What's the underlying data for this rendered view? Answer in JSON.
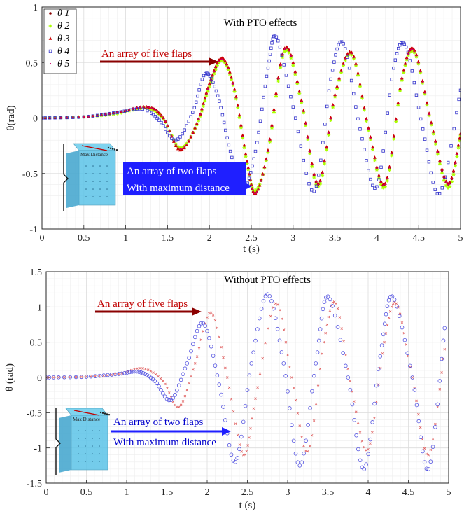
{
  "chart_data": [
    {
      "type": "scatter",
      "title": "With PTO effects",
      "xlabel": "t (s)",
      "ylabel": "θ(rad)",
      "xlim": [
        0,
        5
      ],
      "ylim": [
        -1,
        1
      ],
      "xticks": [
        0,
        0.5,
        1,
        1.5,
        2,
        2.5,
        3,
        3.5,
        4,
        4.5,
        5
      ],
      "yticks": [
        -1,
        -0.5,
        0,
        0.5,
        1
      ],
      "grid": true,
      "legend_position": "top-left",
      "legend": [
        "θ 1",
        "θ 2",
        "θ 3",
        "θ 4",
        "θ 5"
      ],
      "annotations": [
        {
          "text": "An array of five flaps",
          "color": "#c00000",
          "arrow_color": "#8b0000"
        },
        {
          "text": "An array of two flaps",
          "color": "#ffffff",
          "box": "#1f1fff"
        },
        {
          "text": "With maximum distance",
          "color": "#ffffff",
          "box": "#1f1fff"
        }
      ],
      "inset": {
        "label": "Max Distance"
      },
      "series": [
        {
          "name": "θ 1",
          "marker": "dot",
          "color": "#8b0000",
          "t": [
            0,
            0.5,
            0.9,
            1.25,
            1.45,
            1.65,
            1.85,
            2.0,
            2.15,
            2.3,
            2.45,
            2.55,
            2.7,
            2.9,
            3.1,
            3.3,
            3.5,
            3.7,
            3.9,
            4.1,
            4.3,
            4.45,
            4.65,
            4.85,
            5.0
          ],
          "theta": [
            0,
            0.01,
            0.05,
            0.1,
            0.0,
            -0.28,
            -0.05,
            0.3,
            0.53,
            0.25,
            -0.4,
            -0.68,
            -0.3,
            0.62,
            0.15,
            -0.6,
            0.2,
            0.58,
            -0.1,
            -0.6,
            0.35,
            0.6,
            -0.05,
            -0.6,
            -0.15
          ]
        },
        {
          "name": "θ 2",
          "marker": "star",
          "color": "#aaff00",
          "t": [
            0,
            0.5,
            0.9,
            1.25,
            1.45,
            1.65,
            1.85,
            2.0,
            2.15,
            2.3,
            2.45,
            2.55,
            2.7,
            2.9,
            3.1,
            3.3,
            3.5,
            3.7,
            3.9,
            4.1,
            4.3,
            4.45,
            4.65,
            4.85,
            5.0
          ],
          "theta": [
            0,
            0.01,
            0.04,
            0.09,
            -0.01,
            -0.27,
            -0.06,
            0.28,
            0.52,
            0.24,
            -0.41,
            -0.66,
            -0.31,
            0.6,
            0.14,
            -0.62,
            0.19,
            0.57,
            -0.11,
            -0.62,
            0.34,
            0.59,
            -0.06,
            -0.63,
            -0.16
          ]
        },
        {
          "name": "θ 3",
          "marker": "triangle",
          "color": "#cc0000",
          "t": [
            0,
            0.5,
            0.9,
            1.25,
            1.45,
            1.65,
            1.85,
            2.0,
            2.15,
            2.3,
            2.45,
            2.55,
            2.7,
            2.9,
            3.1,
            3.3,
            3.5,
            3.7,
            3.9,
            4.1,
            4.3,
            4.45,
            4.65,
            4.85,
            5.0
          ],
          "theta": [
            0,
            0.01,
            0.05,
            0.1,
            0.0,
            -0.29,
            -0.05,
            0.31,
            0.54,
            0.26,
            -0.39,
            -0.68,
            -0.29,
            0.63,
            0.16,
            -0.59,
            0.21,
            0.59,
            -0.09,
            -0.59,
            0.36,
            0.61,
            -0.04,
            -0.59,
            -0.14
          ]
        },
        {
          "name": "θ 4",
          "marker": "square",
          "color": "#3333cc",
          "t": [
            0,
            0.5,
            0.9,
            1.2,
            1.4,
            1.6,
            1.8,
            1.95,
            2.1,
            2.25,
            2.4,
            2.55,
            2.7,
            2.8,
            3.0,
            3.25,
            3.45,
            3.6,
            3.8,
            4.0,
            4.2,
            4.35,
            4.55,
            4.75,
            5.0
          ],
          "theta": [
            0,
            0.01,
            0.05,
            0.08,
            -0.02,
            -0.2,
            0.05,
            0.4,
            0.2,
            -0.3,
            -0.65,
            -0.3,
            0.45,
            0.73,
            0.1,
            -0.66,
            0.35,
            0.67,
            -0.1,
            -0.62,
            0.45,
            0.64,
            -0.1,
            -0.68,
            0.25
          ]
        },
        {
          "name": "θ 5",
          "marker": "point",
          "color": "#cc0066",
          "t": [
            0,
            0.5,
            0.9,
            1.25,
            1.45,
            1.65,
            1.85,
            2.0,
            2.15,
            2.3,
            2.45,
            2.55,
            2.7,
            2.9,
            3.1,
            3.3,
            3.5,
            3.7,
            3.9,
            4.1,
            4.3,
            4.45,
            4.65,
            4.85,
            5.0
          ],
          "theta": [
            0,
            0.01,
            0.05,
            0.1,
            0.0,
            -0.28,
            -0.05,
            0.3,
            0.53,
            0.25,
            -0.4,
            -0.68,
            -0.3,
            0.62,
            0.15,
            -0.6,
            0.2,
            0.58,
            -0.1,
            -0.6,
            0.35,
            0.6,
            -0.05,
            -0.6,
            -0.15
          ]
        }
      ]
    },
    {
      "type": "scatter",
      "title": "Without PTO effects",
      "xlabel": "t (s)",
      "ylabel": "θ (rad)",
      "xlim": [
        0,
        5
      ],
      "ylim": [
        -1.5,
        1.5
      ],
      "xticks": [
        0,
        0.5,
        1,
        1.5,
        2,
        2.5,
        3,
        3.5,
        4,
        4.5,
        5
      ],
      "yticks": [
        -1.5,
        -1,
        -0.5,
        0,
        0.5,
        1,
        1.5
      ],
      "grid": true,
      "annotations": [
        {
          "text": "An array of five flaps",
          "color": "#c00000",
          "arrow_color": "#8b0000"
        },
        {
          "text": "An array of two flaps",
          "color": "#0000cc"
        },
        {
          "text": "With maximum distance",
          "color": "#0000cc"
        }
      ],
      "inset": {
        "label": "Max Distance"
      },
      "series": [
        {
          "name": "five flaps",
          "marker": "cross",
          "color": "#e06060",
          "t": [
            0,
            0.5,
            0.9,
            1.2,
            1.45,
            1.65,
            1.85,
            2.05,
            2.25,
            2.45,
            2.6,
            2.85,
            3.05,
            3.25,
            3.45,
            3.6,
            3.8,
            4.0,
            4.2,
            4.35,
            4.55,
            4.75,
            4.95
          ],
          "theta": [
            0,
            0.01,
            0.05,
            0.13,
            -0.05,
            -0.42,
            0.2,
            0.92,
            0.0,
            -1.1,
            -0.3,
            1.05,
            0.0,
            -1.05,
            0.5,
            1.05,
            -0.2,
            -1.02,
            0.5,
            1.05,
            0.0,
            -1.1,
            0.4
          ]
        },
        {
          "name": "two flaps",
          "marker": "circle",
          "color": "#5050e0",
          "t": [
            0,
            0.5,
            0.9,
            1.15,
            1.35,
            1.55,
            1.75,
            1.95,
            2.15,
            2.35,
            2.55,
            2.75,
            2.95,
            3.15,
            3.35,
            3.5,
            3.75,
            3.95,
            4.15,
            4.3,
            4.55,
            4.75,
            4.95
          ],
          "theta": [
            0,
            0.01,
            0.05,
            0.08,
            -0.05,
            -0.32,
            0.2,
            0.77,
            -0.1,
            -1.2,
            0.2,
            1.18,
            0.2,
            -1.25,
            0.2,
            1.15,
            0.0,
            -1.3,
            0.3,
            1.15,
            0.0,
            -1.3,
            0.7
          ]
        }
      ]
    }
  ]
}
